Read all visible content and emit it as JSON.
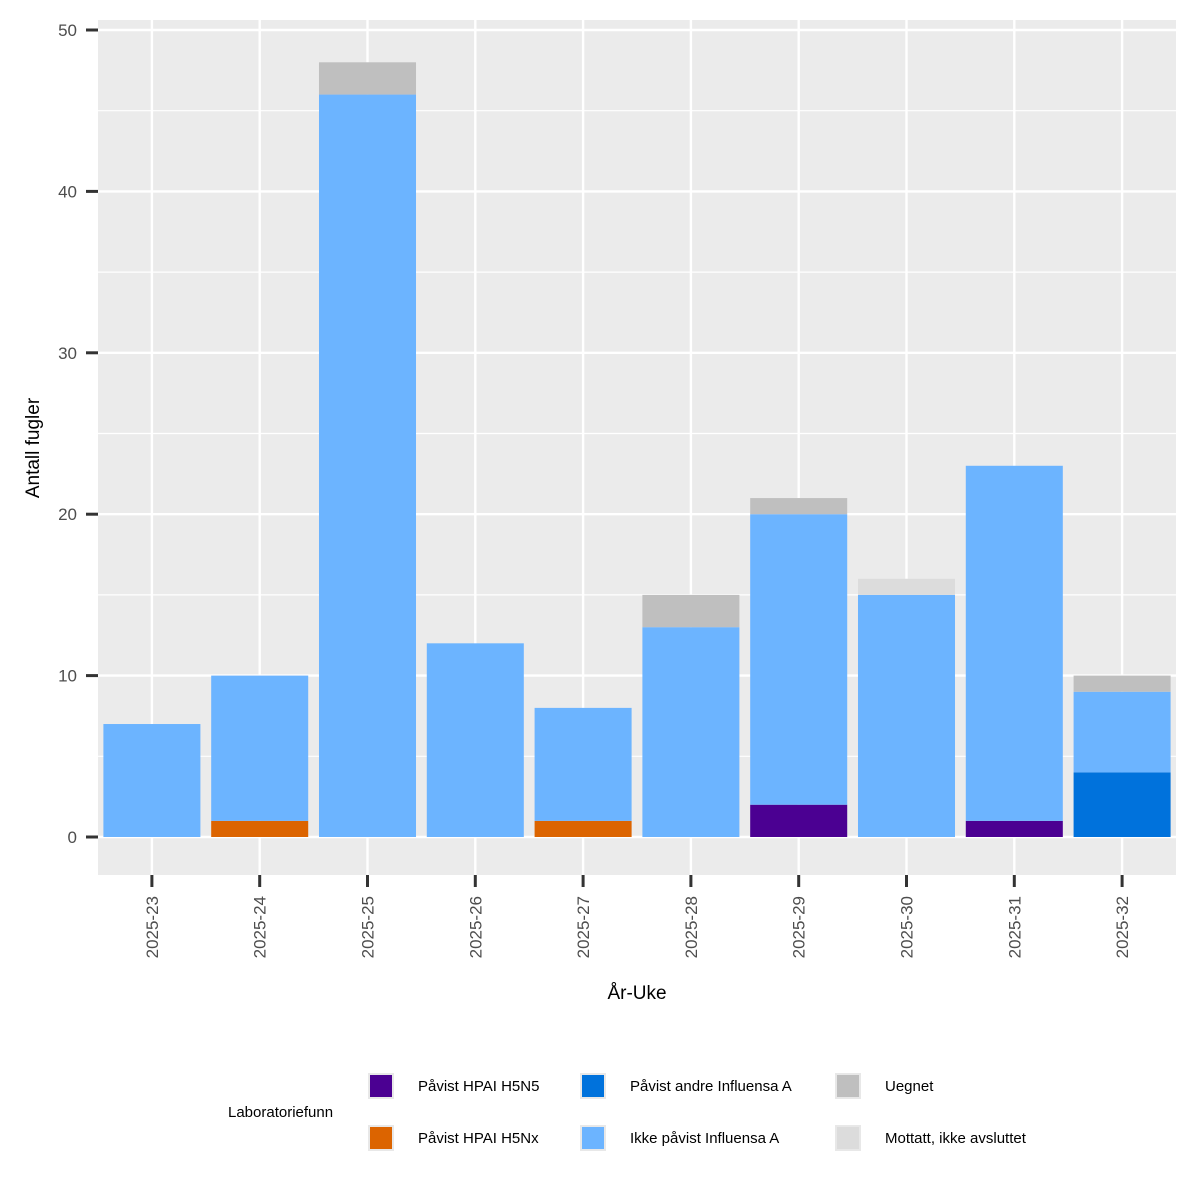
{
  "chart_data": {
    "type": "bar",
    "stacked": true,
    "xlabel": "År-Uke",
    "ylabel": "Antall fugler",
    "ylim": [
      -2.5,
      50
    ],
    "yticks": [
      0,
      10,
      20,
      30,
      40,
      50
    ],
    "grid": true,
    "legend_position": "bottom",
    "legend_title": "Laboratoriefunn",
    "categories": [
      "2025-23",
      "2025-24",
      "2025-25",
      "2025-26",
      "2025-27",
      "2025-28",
      "2025-29",
      "2025-30",
      "2025-31",
      "2025-32"
    ],
    "series": [
      {
        "name": "Påvist HPAI H5N5",
        "color": "#4b0092",
        "values": [
          0,
          0,
          0,
          0,
          0,
          0,
          2,
          0,
          1,
          0
        ]
      },
      {
        "name": "Påvist HPAI H5Nx",
        "color": "#dc6400",
        "values": [
          0,
          1,
          0,
          0,
          1,
          0,
          0,
          0,
          0,
          0
        ]
      },
      {
        "name": "Påvist andre Influensa A",
        "color": "#0072dc",
        "values": [
          0,
          0,
          0,
          0,
          0,
          0,
          0,
          0,
          0,
          4
        ]
      },
      {
        "name": "Ikke påvist Influensa A",
        "color": "#6cb4ff",
        "values": [
          7,
          9,
          46,
          12,
          7,
          13,
          18,
          15,
          22,
          5
        ]
      },
      {
        "name": "Uegnet",
        "color": "#bfbfbf",
        "values": [
          0,
          0,
          2,
          0,
          0,
          2,
          1,
          0,
          0,
          1
        ]
      },
      {
        "name": "Mottatt, ikke avsluttet",
        "color": "#dcdcdc",
        "values": [
          0,
          0,
          0,
          0,
          0,
          0,
          0,
          1,
          0,
          0
        ]
      }
    ],
    "legend_layout": [
      [
        "Påvist HPAI H5N5",
        "Påvist HPAI H5Nx"
      ],
      [
        "Påvist andre Influensa A",
        "Ikke påvist Influensa A"
      ],
      [
        "Uegnet",
        "Mottatt, ikke avsluttet"
      ]
    ]
  }
}
